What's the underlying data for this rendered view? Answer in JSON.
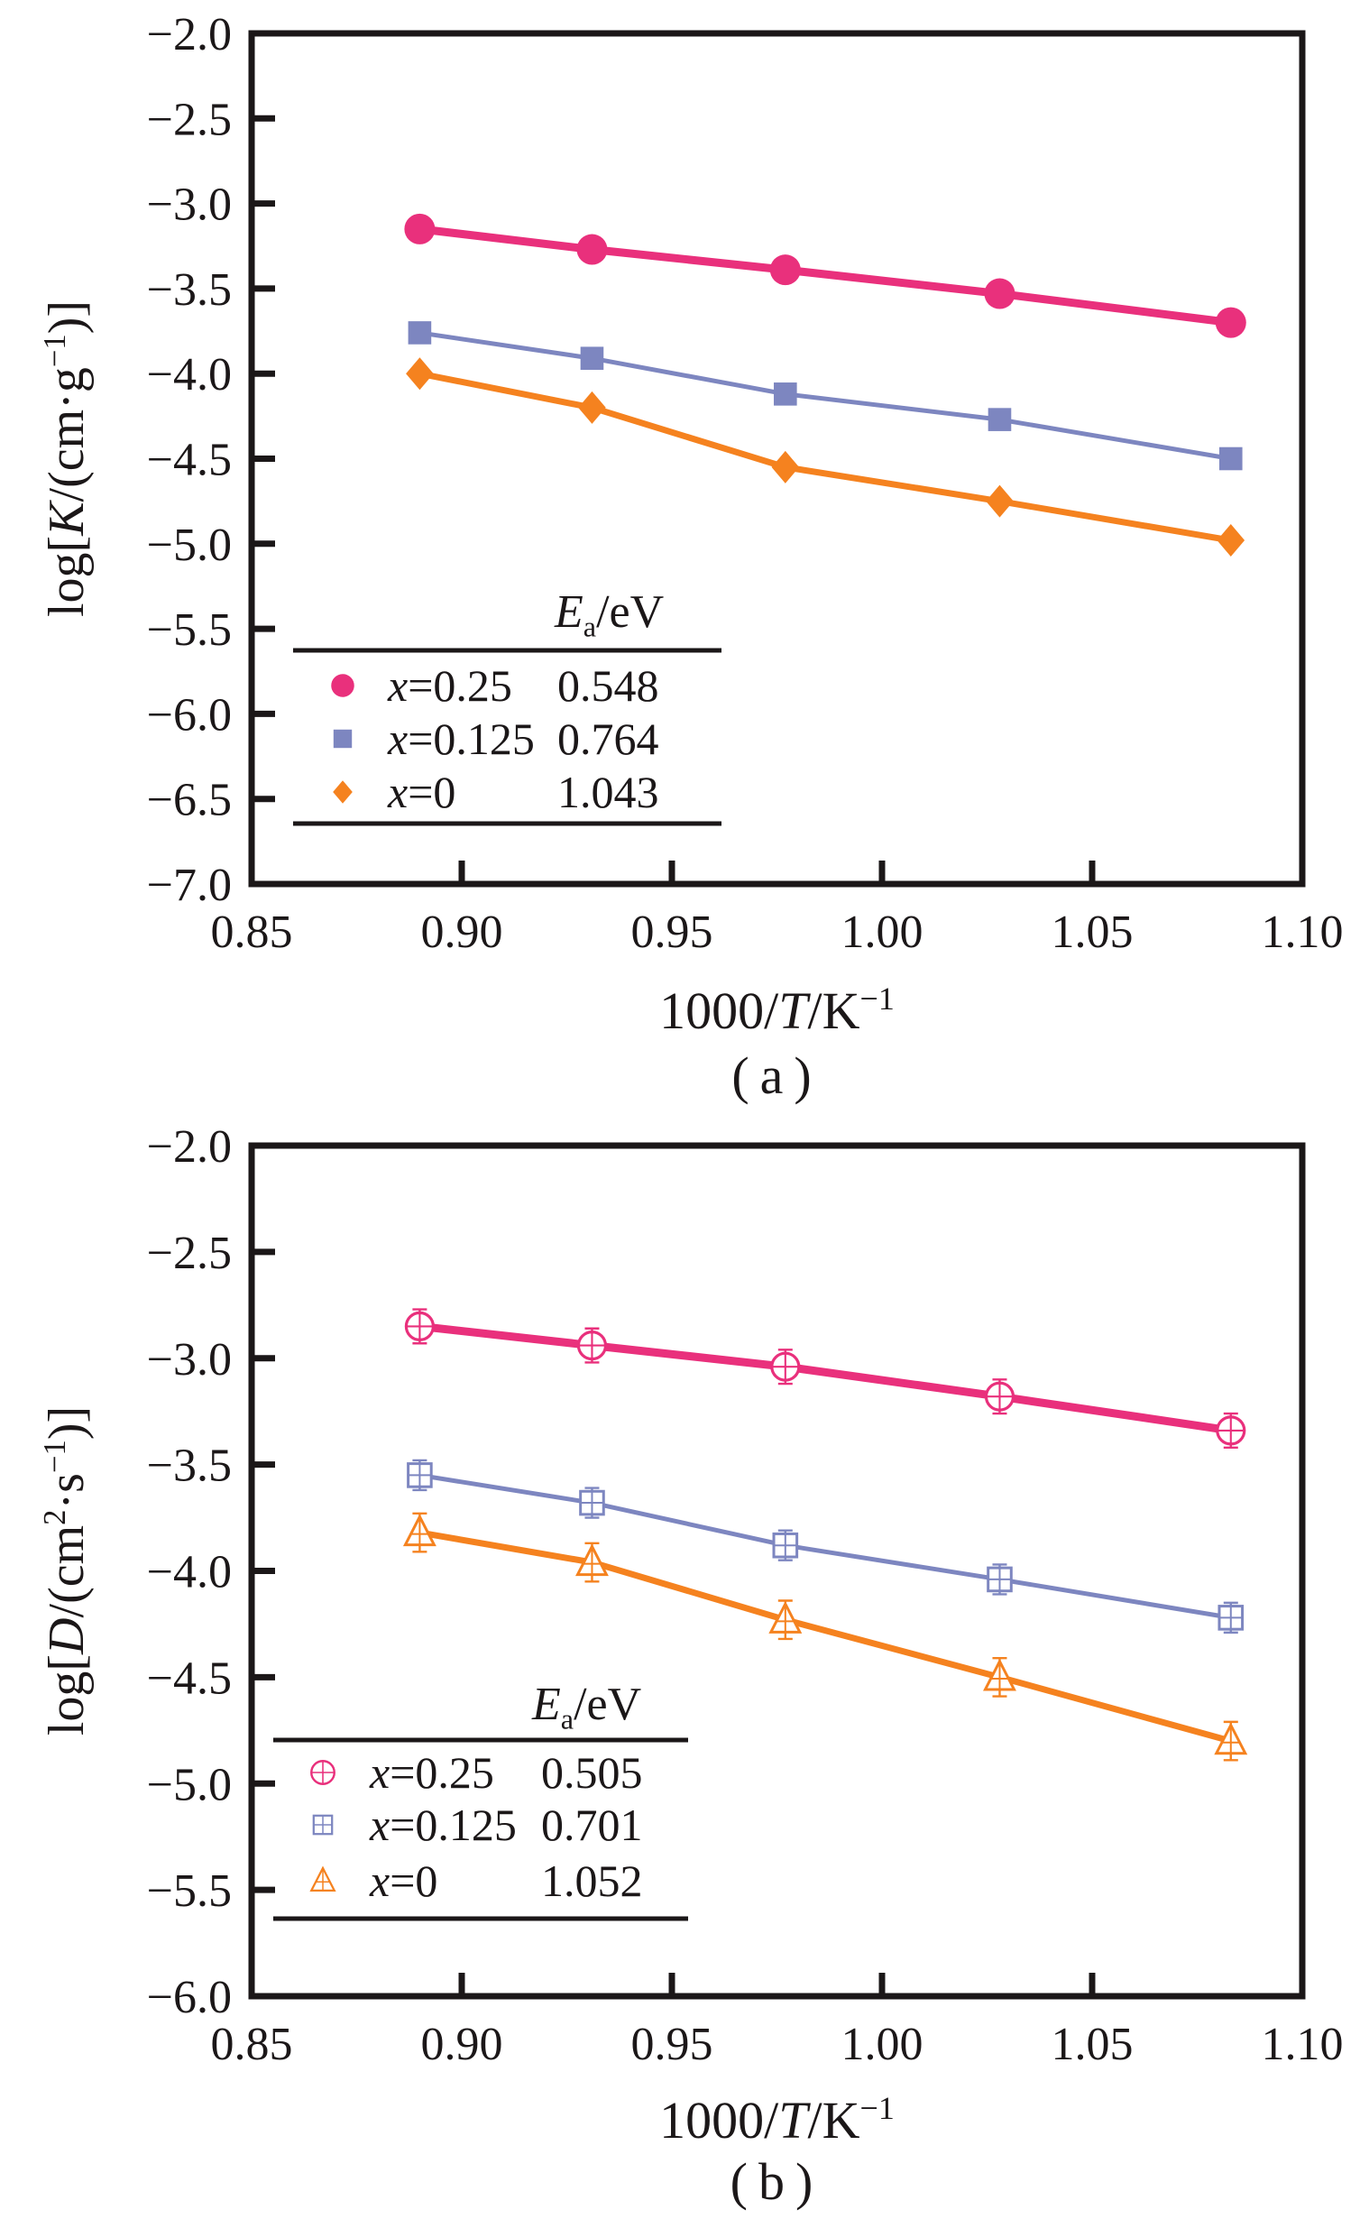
{
  "figure": {
    "background": "#ffffff",
    "axis_color": "#1b1718",
    "text_color": "#1b1718"
  },
  "chart_data": [
    {
      "type": "line",
      "caption": "(a)",
      "xlabel": "1000/T/K−1",
      "ylabel": "log[K/(cm·g−1)]",
      "xlabel_tokens": [
        {
          "t": "1000/"
        },
        {
          "t": "T",
          "style": "italic"
        },
        {
          "t": "/K"
        },
        {
          "t": "−1",
          "sup": true
        }
      ],
      "ylabel_tokens": [
        {
          "t": "log["
        },
        {
          "t": "K",
          "style": "italic"
        },
        {
          "t": "/(cm·g"
        },
        {
          "t": "−1",
          "sup": true
        },
        {
          "t": ")]"
        }
      ],
      "xlim": [
        0.85,
        1.1
      ],
      "ylim": [
        -7.0,
        -2.0
      ],
      "x_tick_values": [
        0.85,
        0.9,
        0.95,
        1.0,
        1.05,
        1.1
      ],
      "x_tick_labels": [
        "0.85",
        "0.90",
        "0.95",
        "1.00",
        "1.05",
        "1.10"
      ],
      "x_inner_tick_values": [
        0.9,
        0.95,
        1.0,
        1.05
      ],
      "y_tick_values": [
        -2.0,
        -2.5,
        -3.0,
        -3.5,
        -4.0,
        -4.5,
        -5.0,
        -5.5,
        -6.0,
        -6.5,
        -7.0
      ],
      "y_tick_labels": [
        "−2.0",
        "−2.5",
        "−3.0",
        "−3.5",
        "−4.0",
        "−4.5",
        "−5.0",
        "−5.5",
        "−6.0",
        "−6.5",
        "−7.0"
      ],
      "grid": false,
      "legend_position": "inside-bottom-left",
      "legend": {
        "header": "Ea/eV",
        "header_tokens": [
          {
            "t": "E",
            "style": "italic"
          },
          {
            "t": "a",
            "sub": true
          },
          {
            "t": "/eV"
          }
        ],
        "rows": [
          {
            "marker": "circle-filled",
            "color": "#e9307c",
            "label": "x=0.25",
            "label_tokens": [
              {
                "t": "x",
                "style": "italic"
              },
              {
                "t": "=0.25"
              }
            ],
            "value": "0.548"
          },
          {
            "marker": "square-filled",
            "color": "#7d86c0",
            "label": "x=0.125",
            "label_tokens": [
              {
                "t": "x",
                "style": "italic"
              },
              {
                "t": "=0.125"
              }
            ],
            "value": "0.764"
          },
          {
            "marker": "diamond-filled",
            "color": "#f5821f",
            "label": "x=0",
            "label_tokens": [
              {
                "t": "x",
                "style": "italic"
              },
              {
                "t": "=0"
              }
            ],
            "value": "1.043"
          }
        ]
      },
      "x": [
        0.89,
        0.931,
        0.977,
        1.028,
        1.083
      ],
      "series": [
        {
          "name": "x=0.25",
          "Ea_eV": 0.548,
          "marker": "circle-filled",
          "color": "#e9307c",
          "line_width": 9,
          "marker_size": 17,
          "y": [
            -3.15,
            -3.27,
            -3.39,
            -3.53,
            -3.7
          ]
        },
        {
          "name": "x=0.125",
          "Ea_eV": 0.764,
          "marker": "square-filled",
          "color": "#7d86c0",
          "line_width": 5,
          "marker_size": 16,
          "y": [
            -3.76,
            -3.91,
            -4.12,
            -4.27,
            -4.5
          ]
        },
        {
          "name": "x=0",
          "Ea_eV": 1.043,
          "marker": "diamond-filled",
          "color": "#f5821f",
          "line_width": 7,
          "marker_size": 18,
          "y": [
            -4.0,
            -4.2,
            -4.55,
            -4.75,
            -4.98
          ]
        }
      ]
    },
    {
      "type": "line",
      "caption": "(b)",
      "xlabel": "1000/T/K−1",
      "ylabel": "log[D/(cm2·s−1)]",
      "xlabel_tokens": [
        {
          "t": "1000/"
        },
        {
          "t": "T",
          "style": "italic"
        },
        {
          "t": "/K"
        },
        {
          "t": "−1",
          "sup": true
        }
      ],
      "ylabel_tokens": [
        {
          "t": "log["
        },
        {
          "t": "D",
          "style": "italic"
        },
        {
          "t": "/(cm"
        },
        {
          "t": "2",
          "sup": true
        },
        {
          "t": "·s"
        },
        {
          "t": "−1",
          "sup": true
        },
        {
          "t": ")]"
        }
      ],
      "xlim": [
        0.85,
        1.1
      ],
      "ylim": [
        -6.0,
        -2.0
      ],
      "x_tick_values": [
        0.85,
        0.9,
        0.95,
        1.0,
        1.05,
        1.1
      ],
      "x_tick_labels": [
        "0.85",
        "0.90",
        "0.95",
        "1.00",
        "1.05",
        "1.10"
      ],
      "x_inner_tick_values": [
        0.9,
        0.95,
        1.0,
        1.05
      ],
      "y_tick_values": [
        -2.0,
        -2.5,
        -3.0,
        -3.5,
        -4.0,
        -4.5,
        -5.0,
        -5.5,
        -6.0
      ],
      "y_tick_labels": [
        "−2.0",
        "−2.5",
        "−3.0",
        "−3.5",
        "−4.0",
        "−4.5",
        "−5.0",
        "−5.5",
        "−6.0"
      ],
      "grid": false,
      "legend_position": "inside-bottom-left",
      "legend": {
        "header": "Ea/eV",
        "header_tokens": [
          {
            "t": "E",
            "style": "italic"
          },
          {
            "t": "a",
            "sub": true
          },
          {
            "t": "/eV"
          }
        ],
        "rows": [
          {
            "marker": "circle-open-cross",
            "color": "#e9307c",
            "label": "x=0.25",
            "label_tokens": [
              {
                "t": "x",
                "style": "italic"
              },
              {
                "t": "=0.25"
              }
            ],
            "value": "0.505"
          },
          {
            "marker": "square-open-cross",
            "color": "#7d86c0",
            "label": "x=0.125",
            "label_tokens": [
              {
                "t": "x",
                "style": "italic"
              },
              {
                "t": "=0.125"
              }
            ],
            "value": "0.701"
          },
          {
            "marker": "triangle-open-cross",
            "color": "#f5821f",
            "label": "x=0",
            "label_tokens": [
              {
                "t": "x",
                "style": "italic"
              },
              {
                "t": "=0"
              }
            ],
            "value": "1.052"
          }
        ]
      },
      "x": [
        0.89,
        0.931,
        0.977,
        1.028,
        1.083
      ],
      "series": [
        {
          "name": "x=0.25",
          "Ea_eV": 0.505,
          "marker": "circle-open-cross",
          "color": "#e9307c",
          "line_width": 9,
          "marker_size": 15,
          "y_err": 0.08,
          "y": [
            -2.85,
            -2.94,
            -3.04,
            -3.18,
            -3.34
          ]
        },
        {
          "name": "x=0.125",
          "Ea_eV": 0.701,
          "marker": "square-open-cross",
          "color": "#7d86c0",
          "line_width": 5,
          "marker_size": 16,
          "y_err": 0.07,
          "y": [
            -3.55,
            -3.68,
            -3.88,
            -4.04,
            -4.22
          ]
        },
        {
          "name": "x=0",
          "Ea_eV": 1.052,
          "marker": "triangle-open-cross",
          "color": "#f5821f",
          "line_width": 7,
          "marker_size": 16,
          "y_err": 0.09,
          "y": [
            -3.82,
            -3.96,
            -4.23,
            -4.5,
            -4.8
          ]
        }
      ]
    }
  ]
}
